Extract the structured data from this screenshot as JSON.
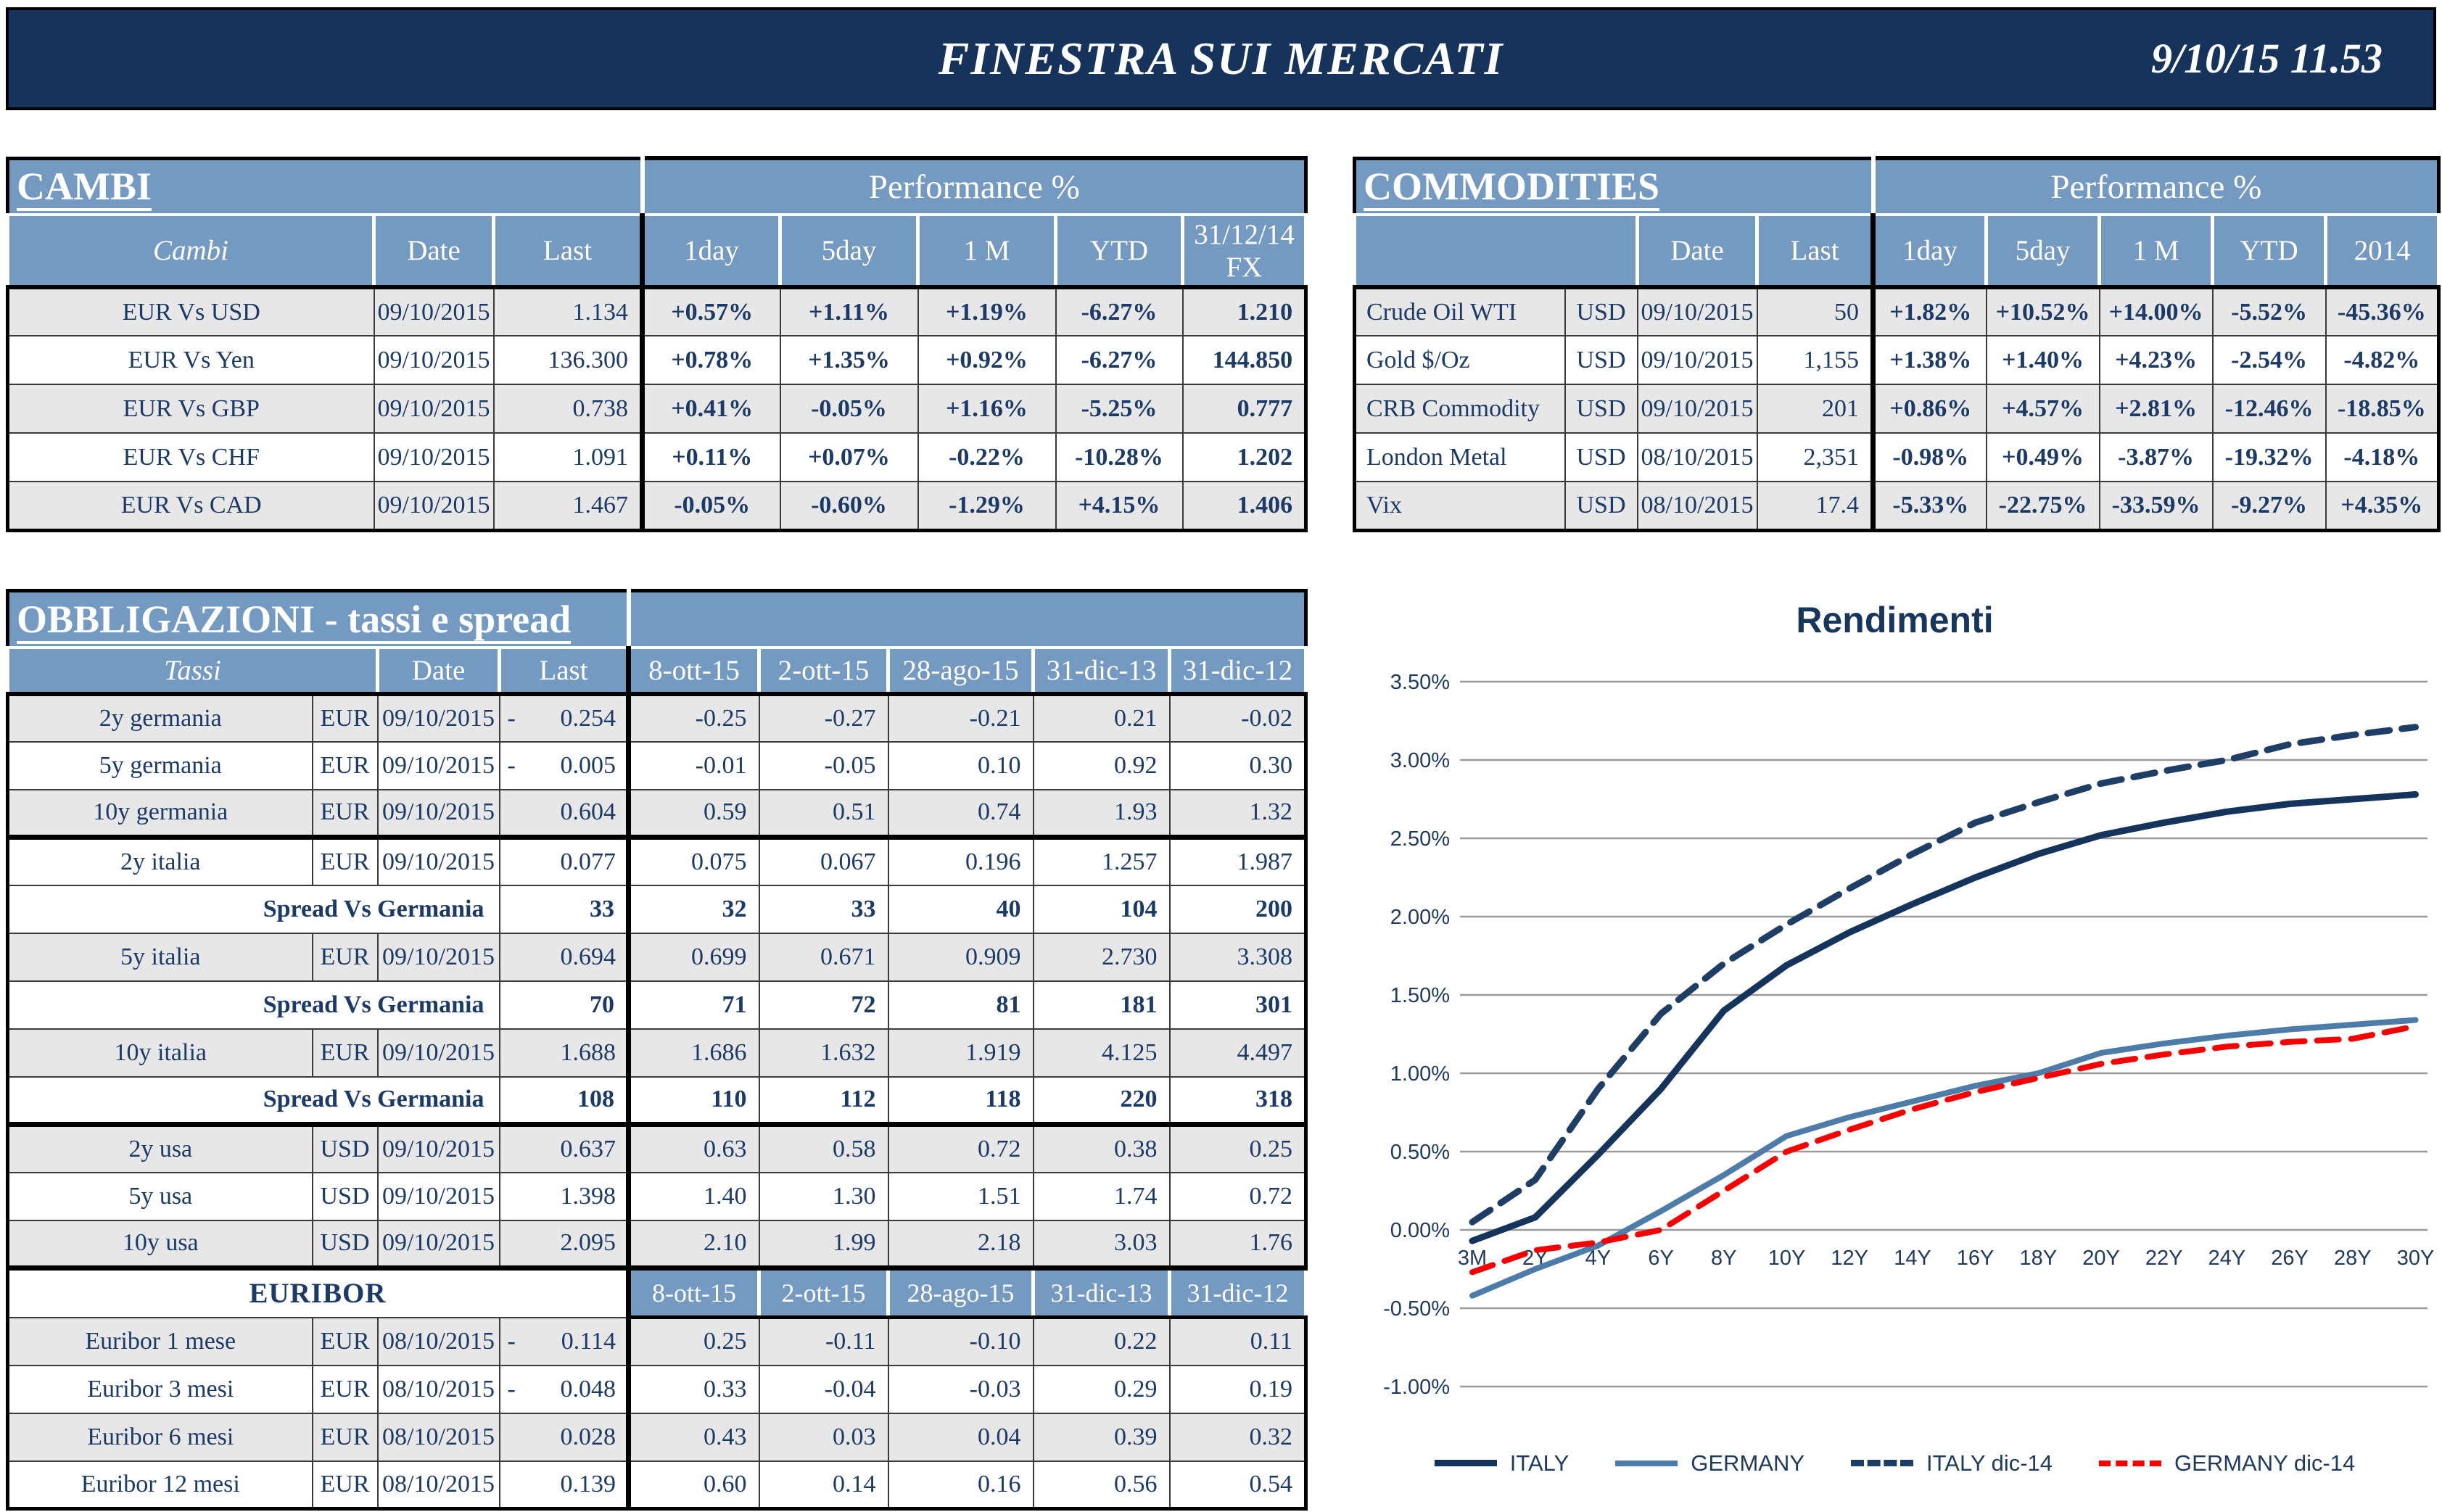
{
  "titlebar": {
    "title": "FINESTRA SUI MERCATI",
    "datetime": "9/10/15 11.53"
  },
  "cambi": {
    "title": "CAMBI",
    "perf_label": "Performance %",
    "headers": {
      "name": "Cambi",
      "date": "Date",
      "last": "Last",
      "c1": "1day",
      "c2": "5day",
      "c3": "1 M",
      "c4": "YTD",
      "c5a": "31/12/14",
      "c5b": "FX"
    },
    "rows": [
      {
        "name": "EUR Vs USD",
        "date": "09/10/2015",
        "last": "1.134",
        "p": [
          "+0.57%",
          "+1.11%",
          "+1.19%",
          "-6.27%"
        ],
        "fx": "1.210",
        "shade": true
      },
      {
        "name": "EUR Vs Yen",
        "date": "09/10/2015",
        "last": "136.300",
        "p": [
          "+0.78%",
          "+1.35%",
          "+0.92%",
          "-6.27%"
        ],
        "fx": "144.850",
        "shade": false
      },
      {
        "name": "EUR Vs GBP",
        "date": "09/10/2015",
        "last": "0.738",
        "p": [
          "+0.41%",
          "-0.05%",
          "+1.16%",
          "-5.25%"
        ],
        "fx": "0.777",
        "shade": true
      },
      {
        "name": "EUR Vs CHF",
        "date": "09/10/2015",
        "last": "1.091",
        "p": [
          "+0.11%",
          "+0.07%",
          "-0.22%",
          "-10.28%"
        ],
        "fx": "1.202",
        "shade": false
      },
      {
        "name": "EUR Vs CAD",
        "date": "09/10/2015",
        "last": "1.467",
        "p": [
          "-0.05%",
          "-0.60%",
          "-1.29%",
          "+4.15%"
        ],
        "fx": "1.406",
        "shade": true
      }
    ]
  },
  "commodities": {
    "title": "COMMODITIES",
    "perf_label": "Performance %",
    "headers": {
      "date": "Date",
      "last": "Last",
      "c1": "1day",
      "c2": "5day",
      "c3": "1 M",
      "c4": "YTD",
      "c5": "2014"
    },
    "rows": [
      {
        "name": "Crude Oil WTI",
        "cur": "USD",
        "date": "09/10/2015",
        "last": "50",
        "p": [
          "+1.82%",
          "+10.52%",
          "+14.00%",
          "-5.52%",
          "-45.36%"
        ],
        "shade": true
      },
      {
        "name": "Gold $/Oz",
        "cur": "USD",
        "date": "09/10/2015",
        "last": "1,155",
        "p": [
          "+1.38%",
          "+1.40%",
          "+4.23%",
          "-2.54%",
          "-4.82%"
        ],
        "shade": false
      },
      {
        "name": "CRB Commodity",
        "cur": "USD",
        "date": "09/10/2015",
        "last": "201",
        "p": [
          "+0.86%",
          "+4.57%",
          "+2.81%",
          "-12.46%",
          "-18.85%"
        ],
        "shade": true
      },
      {
        "name": "London Metal",
        "cur": "USD",
        "date": "08/10/2015",
        "last": "2,351",
        "p": [
          "-0.98%",
          "+0.49%",
          "-3.87%",
          "-19.32%",
          "-4.18%"
        ],
        "shade": false
      },
      {
        "name": "Vix",
        "cur": "USD",
        "date": "08/10/2015",
        "last": "17.4",
        "p": [
          "-5.33%",
          "-22.75%",
          "-33.59%",
          "-9.27%",
          "+4.35%"
        ],
        "shade": true
      }
    ]
  },
  "bonds": {
    "title": "OBBLIGAZIONI - tassi e spread",
    "headers": {
      "name": "Tassi",
      "date": "Date",
      "last": "Last",
      "dates": [
        "8-ott-15",
        "2-ott-15",
        "28-ago-15",
        "31-dic-13",
        "31-dic-12"
      ]
    },
    "rows": [
      {
        "type": "rate",
        "name": "2y germania",
        "cur": "EUR",
        "date": "09/10/2015",
        "neg": true,
        "last": "0.254",
        "vals": [
          "-0.25",
          "-0.27",
          "-0.21",
          "0.21",
          "-0.02"
        ],
        "shade": true
      },
      {
        "type": "rate",
        "name": "5y germania",
        "cur": "EUR",
        "date": "09/10/2015",
        "neg": true,
        "last": "0.005",
        "vals": [
          "-0.01",
          "-0.05",
          "0.10",
          "0.92",
          "0.30"
        ],
        "shade": false
      },
      {
        "type": "rate",
        "name": "10y germania",
        "cur": "EUR",
        "date": "09/10/2015",
        "neg": false,
        "last": "0.604",
        "vals": [
          "0.59",
          "0.51",
          "0.74",
          "1.93",
          "1.32"
        ],
        "shade": true
      },
      {
        "type": "rate",
        "name": "2y italia",
        "cur": "EUR",
        "date": "09/10/2015",
        "neg": false,
        "last": "0.077",
        "vals": [
          "0.075",
          "0.067",
          "0.196",
          "1.257",
          "1.987"
        ],
        "shade": false,
        "tthick": true
      },
      {
        "type": "spread",
        "label": "Spread Vs Germania",
        "last": "33",
        "vals": [
          "32",
          "33",
          "40",
          "104",
          "200"
        ]
      },
      {
        "type": "rate",
        "name": "5y italia",
        "cur": "EUR",
        "date": "09/10/2015",
        "neg": false,
        "last": "0.694",
        "vals": [
          "0.699",
          "0.671",
          "0.909",
          "2.730",
          "3.308"
        ],
        "shade": true
      },
      {
        "type": "spread",
        "label": "Spread Vs Germania",
        "last": "70",
        "vals": [
          "71",
          "72",
          "81",
          "181",
          "301"
        ]
      },
      {
        "type": "rate",
        "name": "10y italia",
        "cur": "EUR",
        "date": "09/10/2015",
        "neg": false,
        "last": "1.688",
        "vals": [
          "1.686",
          "1.632",
          "1.919",
          "4.125",
          "4.497"
        ],
        "shade": true
      },
      {
        "type": "spread",
        "label": "Spread Vs Germania",
        "last": "108",
        "vals": [
          "110",
          "112",
          "118",
          "220",
          "318"
        ]
      },
      {
        "type": "rate",
        "name": "2y usa",
        "cur": "USD",
        "date": "09/10/2015",
        "neg": false,
        "last": "0.637",
        "vals": [
          "0.63",
          "0.58",
          "0.72",
          "0.38",
          "0.25"
        ],
        "shade": true,
        "tthick": true
      },
      {
        "type": "rate",
        "name": "5y usa",
        "cur": "USD",
        "date": "09/10/2015",
        "neg": false,
        "last": "1.398",
        "vals": [
          "1.40",
          "1.30",
          "1.51",
          "1.74",
          "0.72"
        ],
        "shade": false
      },
      {
        "type": "rate",
        "name": "10y usa",
        "cur": "USD",
        "date": "09/10/2015",
        "neg": false,
        "last": "2.095",
        "vals": [
          "2.10",
          "1.99",
          "2.18",
          "3.03",
          "1.76"
        ],
        "shade": true
      },
      {
        "type": "euhead",
        "label": "EURIBOR",
        "dates": [
          "8-ott-15",
          "2-ott-15",
          "28-ago-15",
          "31-dic-13",
          "31-dic-12"
        ],
        "tthick": true
      },
      {
        "type": "rate",
        "name": "Euribor 1 mese",
        "cur": "EUR",
        "date": "08/10/2015",
        "neg": true,
        "last": "0.114",
        "vals": [
          "0.25",
          "-0.11",
          "-0.10",
          "0.22",
          "0.11"
        ],
        "shade": true
      },
      {
        "type": "rate",
        "name": "Euribor 3 mesi",
        "cur": "EUR",
        "date": "08/10/2015",
        "neg": true,
        "last": "0.048",
        "vals": [
          "0.33",
          "-0.04",
          "-0.03",
          "0.29",
          "0.19"
        ],
        "shade": false
      },
      {
        "type": "rate",
        "name": "Euribor 6 mesi",
        "cur": "EUR",
        "date": "08/10/2015",
        "neg": false,
        "last": "0.028",
        "vals": [
          "0.43",
          "0.03",
          "0.04",
          "0.39",
          "0.32"
        ],
        "shade": true
      },
      {
        "type": "rate",
        "name": "Euribor 12 mesi",
        "cur": "EUR",
        "date": "08/10/2015",
        "neg": false,
        "last": "0.139",
        "vals": [
          "0.60",
          "0.14",
          "0.16",
          "0.56",
          "0.54"
        ],
        "shade": false
      }
    ]
  },
  "chart_data": {
    "type": "line",
    "title": "Rendimenti",
    "x_labels": [
      "3M",
      "2Y",
      "4Y",
      "6Y",
      "8Y",
      "10Y",
      "12Y",
      "14Y",
      "16Y",
      "18Y",
      "20Y",
      "22Y",
      "24Y",
      "26Y",
      "28Y",
      "30Y"
    ],
    "y_ticks": [
      "3.50%",
      "3.00%",
      "2.50%",
      "2.00%",
      "1.50%",
      "1.00%",
      "0.50%",
      "0.00%",
      "-0.50%",
      "-1.00%"
    ],
    "ylim": [
      -1.0,
      3.5
    ],
    "y_step": 0.5,
    "grid": "horizontal",
    "legend_position": "bottom",
    "series": [
      {
        "name": "ITALY",
        "color": "#14345C",
        "dash": false,
        "width": 9,
        "values": [
          -0.07,
          0.08,
          0.48,
          0.9,
          1.4,
          1.69,
          1.9,
          2.08,
          2.25,
          2.4,
          2.52,
          2.6,
          2.67,
          2.72,
          2.75,
          2.78
        ]
      },
      {
        "name": "GERMANY",
        "color": "#4D7CA8",
        "dash": false,
        "width": 8,
        "values": [
          -0.42,
          -0.25,
          -0.1,
          0.12,
          0.35,
          0.6,
          0.72,
          0.82,
          0.92,
          1.0,
          1.13,
          1.19,
          1.24,
          1.28,
          1.31,
          1.34
        ]
      },
      {
        "name": "ITALY dic-14",
        "color": "#1F3E66",
        "dash": true,
        "width": 9,
        "values": [
          0.05,
          0.32,
          0.9,
          1.38,
          1.7,
          1.95,
          2.18,
          2.4,
          2.6,
          2.73,
          2.85,
          2.93,
          3.0,
          3.1,
          3.16,
          3.21
        ]
      },
      {
        "name": "GERMANY dic-14",
        "color": "#F80000",
        "dash": true,
        "width": 8,
        "values": [
          -0.27,
          -0.13,
          -0.08,
          0.0,
          0.25,
          0.5,
          0.64,
          0.77,
          0.88,
          0.97,
          1.06,
          1.12,
          1.17,
          1.2,
          1.22,
          1.3
        ]
      }
    ]
  }
}
